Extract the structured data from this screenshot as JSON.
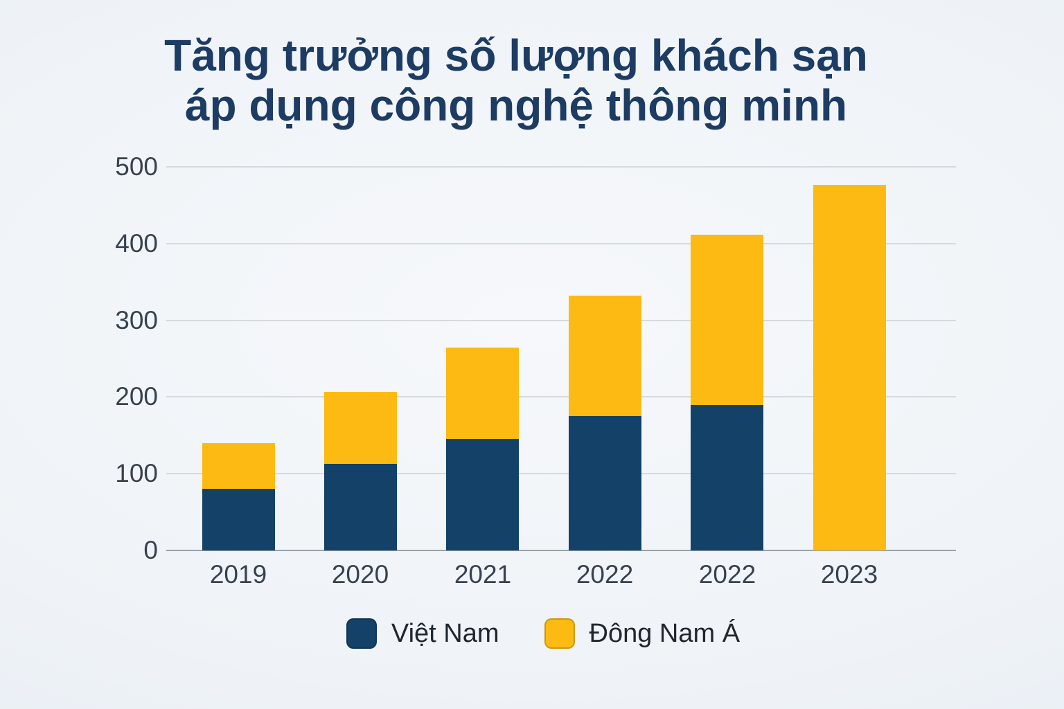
{
  "title": {
    "line1": "Tăng trưởng số lượng khách sạn",
    "line2": "áp dụng công nghệ thông minh"
  },
  "chart_data": {
    "type": "bar",
    "stacked": true,
    "title": "Tăng trưởng số lượng khách sạn áp dụng công nghệ thông minh",
    "categories": [
      "2019",
      "2020",
      "2021",
      "2022",
      "2022",
      "2023"
    ],
    "series": [
      {
        "id": "viet-nam",
        "name": "Việt Nam",
        "color": "#134168",
        "values": [
          80,
          113,
          145,
          175,
          190,
          0
        ]
      },
      {
        "id": "dong-nam-a",
        "name": "Đông Nam Á",
        "color": "#fcba12",
        "values": [
          60,
          94,
          119,
          157,
          222,
          477
        ]
      }
    ],
    "stack_totals": [
      140,
      207,
      264,
      332,
      412,
      477
    ],
    "xlabel": "",
    "ylabel": "",
    "ylim": [
      0,
      500
    ],
    "yticks": [
      0,
      100,
      200,
      300,
      400,
      500
    ],
    "grid": true,
    "legend_position": "bottom"
  },
  "legend": {
    "items": [
      {
        "label": "Việt Nam",
        "color": "#134168"
      },
      {
        "label": "Đông Nam Á",
        "color": "#fcba12"
      }
    ]
  },
  "colors": {
    "title_text": "#1d3c63",
    "axis_text": "#38424e",
    "legend_text": "#20262e",
    "gridline": "#d6dade",
    "axis_line": "#9aa1a9",
    "background": "#eff3f7",
    "bar_navy": "#134168",
    "bar_yellow": "#fcba12"
  }
}
